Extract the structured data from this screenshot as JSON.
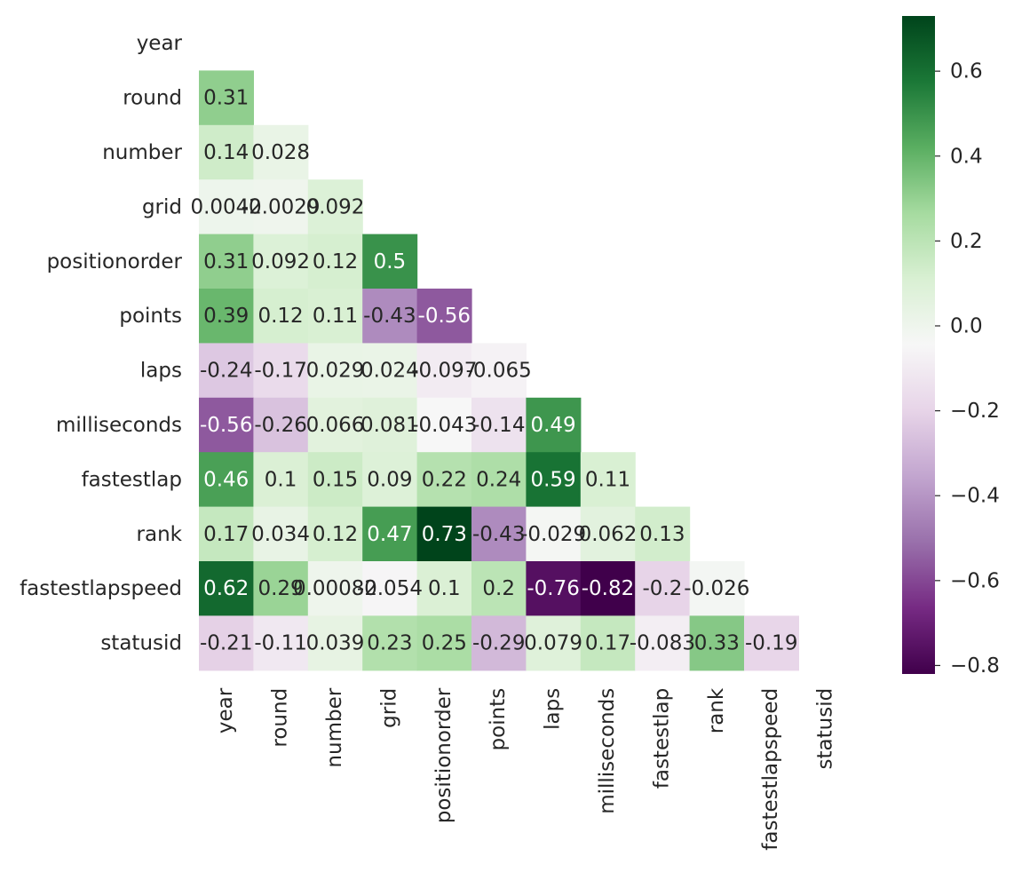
{
  "chart_data": {
    "type": "heatmap",
    "title": "",
    "xlabel": "",
    "ylabel": "",
    "triangle": "lower",
    "labels": [
      "year",
      "round",
      "number",
      "grid",
      "positionorder",
      "points",
      "laps",
      "milliseconds",
      "fastestlap",
      "rank",
      "fastestlapspeed",
      "statusid"
    ],
    "values": [
      [],
      [
        0.31
      ],
      [
        0.14,
        0.028
      ],
      [
        0.0042,
        -0.0029,
        0.092
      ],
      [
        0.31,
        0.092,
        0.12,
        0.5
      ],
      [
        0.39,
        0.12,
        0.11,
        -0.43,
        -0.56
      ],
      [
        -0.24,
        -0.17,
        0.029,
        0.024,
        -0.097,
        -0.065
      ],
      [
        -0.56,
        -0.26,
        0.066,
        0.081,
        -0.043,
        -0.14,
        0.49
      ],
      [
        0.46,
        0.1,
        0.15,
        0.09,
        0.22,
        0.24,
        0.59,
        0.11
      ],
      [
        0.17,
        0.034,
        0.12,
        0.47,
        0.73,
        -0.43,
        -0.029,
        0.062,
        0.13
      ],
      [
        0.62,
        0.29,
        0.00082,
        -0.054,
        0.1,
        0.2,
        -0.76,
        -0.82,
        -0.2,
        -0.026
      ],
      [
        -0.21,
        -0.11,
        0.039,
        0.23,
        0.25,
        -0.29,
        0.079,
        0.17,
        -0.083,
        0.33,
        -0.19
      ]
    ],
    "colormap": "PRGn",
    "colormap_stops": [
      "#40004b",
      "#762a83",
      "#9970ab",
      "#c2a5cf",
      "#e7d4e8",
      "#f7f7f7",
      "#d9f0d3",
      "#a6dba0",
      "#5aae61",
      "#1b7837",
      "#00441b"
    ],
    "vmin": -0.82,
    "vmax": 0.73,
    "colorbar_ticks": [
      0.6,
      0.4,
      0.2,
      0.0,
      -0.2,
      -0.4,
      -0.6,
      -0.8
    ],
    "colorbar_tick_labels": [
      "0.6",
      "0.4",
      "0.2",
      "0.0",
      "−0.2",
      "−0.4",
      "−0.6",
      "−0.8"
    ],
    "grid": false,
    "legend": "colorbar-right"
  }
}
